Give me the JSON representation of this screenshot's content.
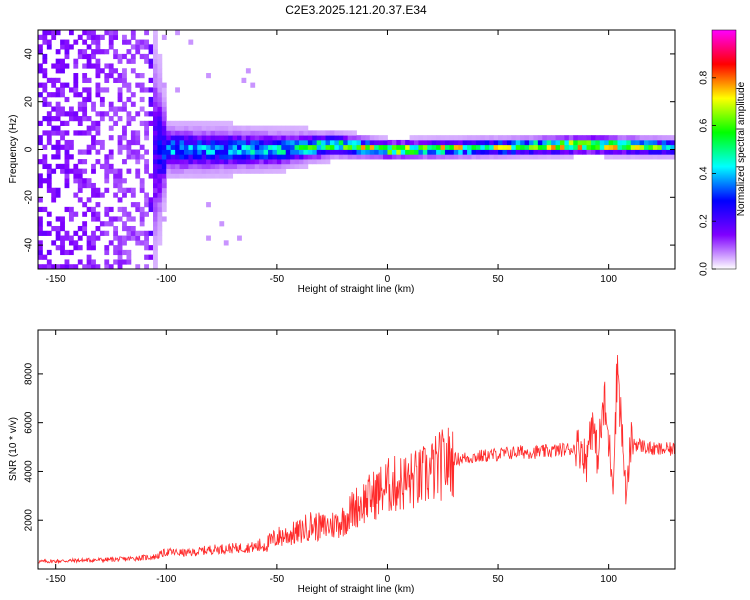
{
  "title": "C2E3.2025.121.20.37.E34",
  "colors": {
    "snr_line": "#ff2a2a",
    "axis": "#000000",
    "background": "#ffffff"
  },
  "chart_data": [
    {
      "type": "heatmap",
      "xlabel": "Height of straight line (km)",
      "ylabel": "Frequency (Hz)",
      "xlim": [
        -158,
        130
      ],
      "ylim": [
        -50,
        50
      ],
      "x_ticks": [
        -150,
        -100,
        -50,
        0,
        50,
        100
      ],
      "x_tick_labels": [
        "-150",
        "-100",
        "-50",
        "0",
        "50",
        "100"
      ],
      "y_ticks": [
        -40,
        -20,
        0,
        20,
        40
      ],
      "y_tick_labels": [
        "-40",
        "-20",
        "0",
        "20",
        "40"
      ],
      "colorbar": {
        "label": "Normalized spectral amplitude",
        "range": [
          0,
          1
        ],
        "ticks": [
          0.0,
          0.2,
          0.4,
          0.6,
          0.8
        ],
        "tick_labels": [
          "0.0",
          "0.2",
          "0.4",
          "0.6",
          "0.8"
        ],
        "colormap": [
          "#ffffff",
          "#7f00ff",
          "#0000ff",
          "#00ffff",
          "#00ff00",
          "#ffff00",
          "#ff0000",
          "#ff00ff"
        ]
      },
      "description_profile": [
        {
          "x": -158,
          "center_hz": 0,
          "halfwidth_hz": 50,
          "amplitude": 0.12
        },
        {
          "x": -110,
          "center_hz": 0,
          "halfwidth_hz": 50,
          "amplitude": 0.08
        },
        {
          "x": -100,
          "center_hz": 0,
          "halfwidth_hz": 8,
          "amplitude": 0.35
        },
        {
          "x": -50,
          "center_hz": 0,
          "halfwidth_hz": 6,
          "amplitude": 0.4
        },
        {
          "x": -25,
          "center_hz": 2,
          "halfwidth_hz": 4,
          "amplitude": 0.55
        },
        {
          "x": 0,
          "center_hz": 0,
          "halfwidth_hz": 3,
          "amplitude": 0.7
        },
        {
          "x": 50,
          "center_hz": 1,
          "halfwidth_hz": 3,
          "amplitude": 0.6
        },
        {
          "x": 90,
          "center_hz": 2,
          "halfwidth_hz": 3,
          "amplitude": 0.8
        },
        {
          "x": 130,
          "center_hz": 1,
          "halfwidth_hz": 3,
          "amplitude": 0.5
        }
      ]
    },
    {
      "type": "line",
      "xlabel": "Height of straight line (km)",
      "ylabel": "SNR (10 * v/v)",
      "xlim": [
        -158,
        130
      ],
      "ylim": [
        0,
        9800
      ],
      "x_ticks": [
        -150,
        -100,
        -50,
        0,
        50,
        100
      ],
      "x_tick_labels": [
        "-150",
        "-100",
        "-50",
        "0",
        "50",
        "100"
      ],
      "y_ticks": [
        2000,
        4000,
        6000,
        8000
      ],
      "y_tick_labels": [
        "2000",
        "4000",
        "6000",
        "8000"
      ],
      "series": [
        {
          "x": [
            -158,
            -140,
            -120,
            -105,
            -100,
            -90,
            -80,
            -70,
            -60,
            -55,
            -50,
            -45,
            -40,
            -35,
            -30,
            -25,
            -22,
            -20,
            -15,
            -10,
            -5,
            0,
            5,
            10,
            15,
            20,
            25,
            30,
            40,
            50,
            60,
            70,
            80,
            85,
            88,
            90,
            92,
            95,
            98,
            100,
            102,
            104,
            106,
            108,
            110,
            120,
            130
          ],
          "y": [
            300,
            350,
            400,
            500,
            700,
            650,
            800,
            850,
            900,
            1000,
            1300,
            1400,
            1500,
            1800,
            1700,
            1800,
            1900,
            2000,
            2500,
            2800,
            3100,
            3400,
            3500,
            3600,
            3700,
            4000,
            4300,
            4500,
            4600,
            4700,
            4800,
            4800,
            4900,
            4950,
            5000,
            4300,
            6200,
            4600,
            6800,
            5200,
            3600,
            8500,
            5600,
            2800,
            5200,
            4900,
            4900
          ]
        }
      ]
    }
  ]
}
